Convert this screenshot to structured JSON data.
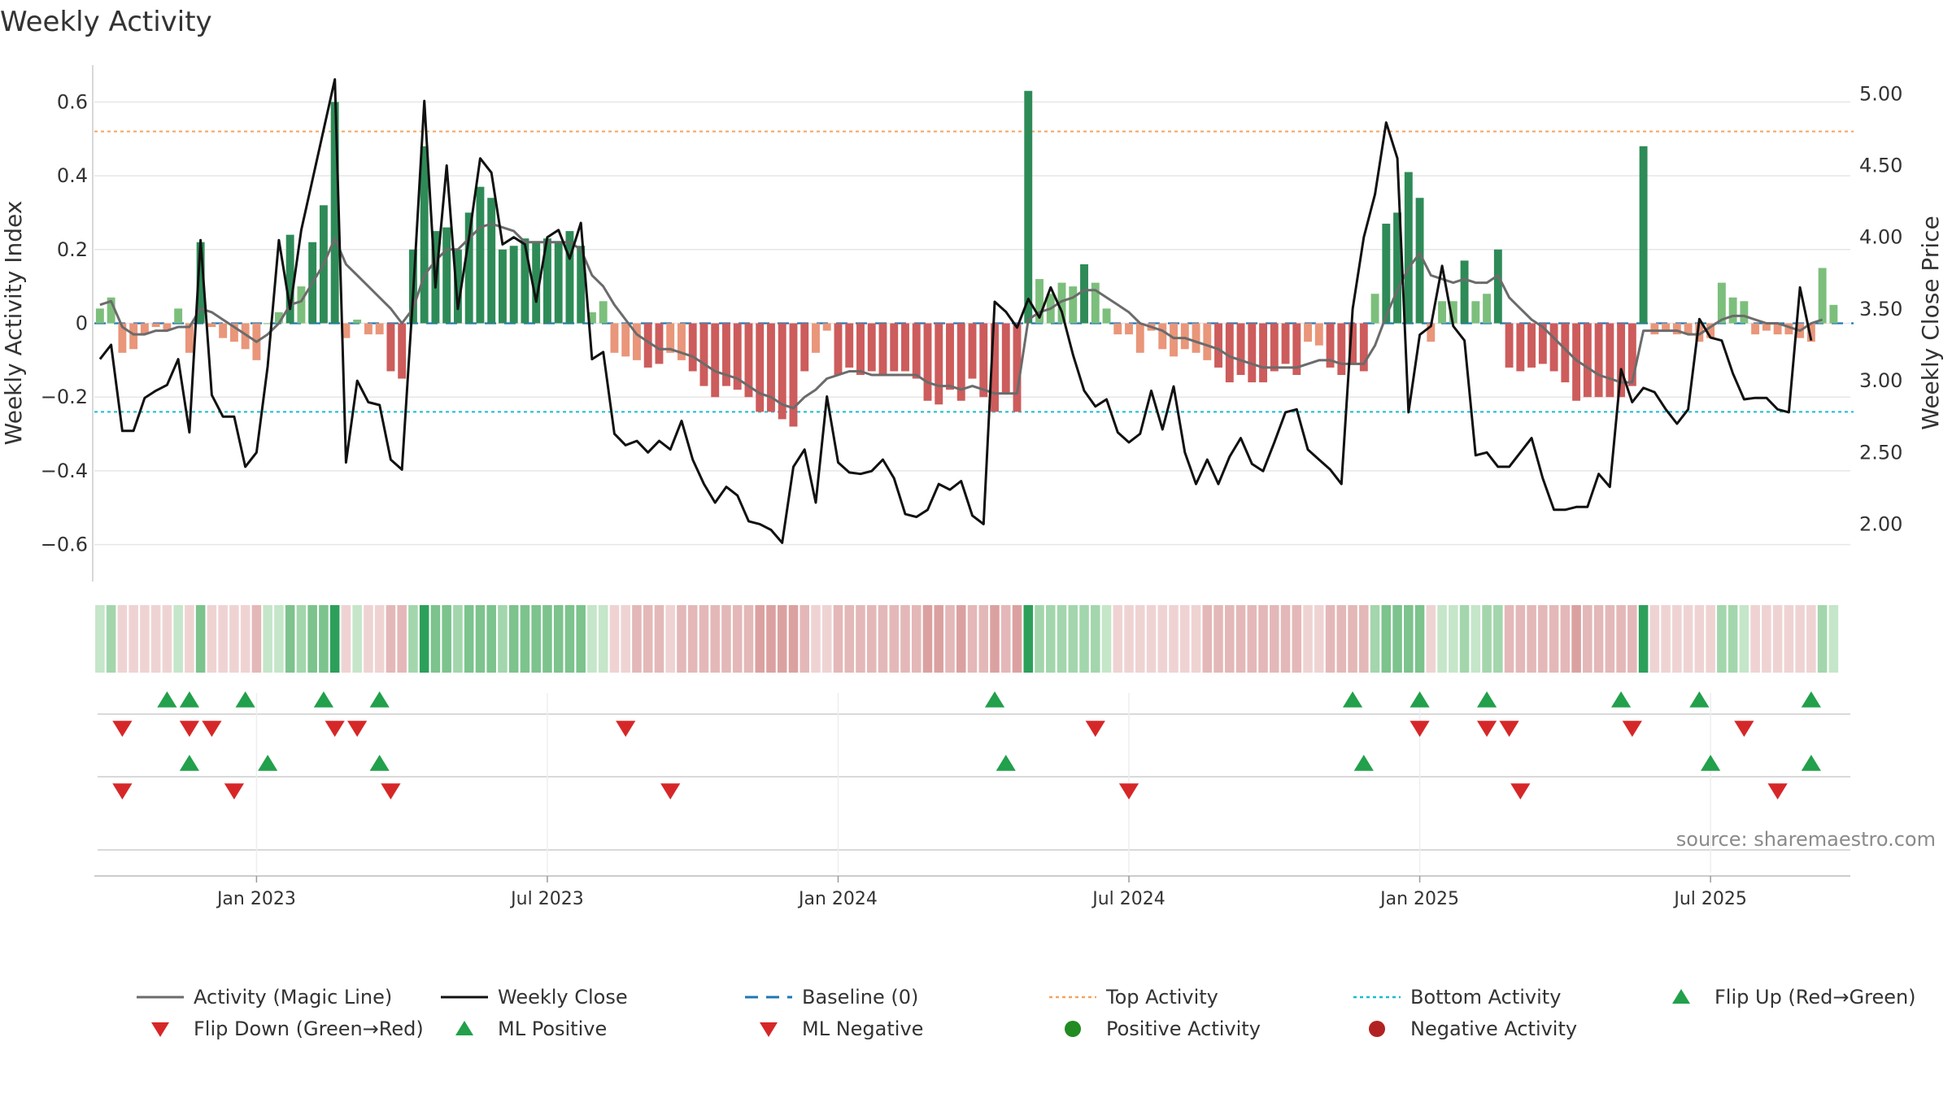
{
  "colors": {
    "pos_strong": "#2e8b57",
    "pos_weak": "#7cbf7c",
    "neg_strong": "#cd5c5c",
    "neg_weak": "#e9967a",
    "magic_line": "#6b6b6b",
    "close_line": "#111111",
    "baseline": "#1f77b4",
    "top": "#f4a460",
    "bottom": "#17becf",
    "up_marker": "#22a04b",
    "down_marker": "#d62728",
    "pos_dot": "#228b22",
    "neg_dot": "#b22222",
    "grid": "#e6e6e6",
    "text": "#333333"
  },
  "chart_data": {
    "type": "bar+line",
    "title": "Weekly Activity",
    "ylabel_left": "Weekly Activity Index",
    "ylabel_right": "Weekly Close Price",
    "ylim_left": [
      -0.7,
      0.7
    ],
    "ylim_right": [
      1.6,
      5.2
    ],
    "yticks_left": [
      {
        "v": 0.6,
        "label": "0.6"
      },
      {
        "v": 0.4,
        "label": "0.4"
      },
      {
        "v": 0.2,
        "label": "0.2"
      },
      {
        "v": 0,
        "label": "0"
      },
      {
        "v": -0.2,
        "label": "−0.2"
      },
      {
        "v": -0.4,
        "label": "−0.4"
      },
      {
        "v": -0.6,
        "label": "−0.6"
      }
    ],
    "yticks_right": [
      {
        "v": 5.0,
        "label": "5.00"
      },
      {
        "v": 4.5,
        "label": "4.50"
      },
      {
        "v": 4.0,
        "label": "4.00"
      },
      {
        "v": 3.5,
        "label": "3.50"
      },
      {
        "v": 3.0,
        "label": "3.00"
      },
      {
        "v": 2.5,
        "label": "2.50"
      },
      {
        "v": 2.0,
        "label": "2.00"
      }
    ],
    "xticks": [
      {
        "week": 14.5,
        "label": "Jan 2023"
      },
      {
        "week": 40.5,
        "label": "Jul 2023"
      },
      {
        "week": 66.5,
        "label": "Jan 2024"
      },
      {
        "week": 92.5,
        "label": "Jul 2024"
      },
      {
        "week": 118.5,
        "label": "Jan 2025"
      },
      {
        "week": 144.5,
        "label": "Jul 2025"
      }
    ],
    "x_range_weeks": [
      0,
      157
    ],
    "top_activity": 0.52,
    "bottom_activity": -0.24,
    "baseline": 0,
    "activity": [
      0.04,
      0.07,
      -0.08,
      -0.07,
      -0.03,
      -0.01,
      -0.02,
      0.04,
      -0.08,
      0.22,
      -0.01,
      -0.04,
      -0.05,
      -0.07,
      -0.1,
      0.0,
      0.03,
      0.24,
      0.1,
      0.22,
      0.32,
      0.6,
      -0.04,
      0.01,
      -0.03,
      -0.03,
      -0.13,
      -0.15,
      0.2,
      0.48,
      0.25,
      0.26,
      0.2,
      0.3,
      0.37,
      0.34,
      0.2,
      0.21,
      0.23,
      0.22,
      0.23,
      0.22,
      0.25,
      0.21,
      0.03,
      0.06,
      -0.08,
      -0.09,
      -0.1,
      -0.12,
      -0.11,
      -0.08,
      -0.1,
      -0.13,
      -0.17,
      -0.2,
      -0.17,
      -0.18,
      -0.2,
      -0.24,
      -0.24,
      -0.26,
      -0.28,
      -0.13,
      -0.08,
      -0.02,
      -0.14,
      -0.12,
      -0.14,
      -0.13,
      -0.14,
      -0.13,
      -0.13,
      -0.15,
      -0.21,
      -0.22,
      -0.18,
      -0.21,
      -0.15,
      -0.2,
      -0.24,
      -0.19,
      -0.24,
      0.63,
      0.12,
      0.08,
      0.11,
      0.1,
      0.16,
      0.11,
      0.04,
      -0.03,
      -0.03,
      -0.08,
      -0.02,
      -0.07,
      -0.09,
      -0.07,
      -0.08,
      -0.1,
      -0.12,
      -0.16,
      -0.14,
      -0.16,
      -0.16,
      -0.13,
      -0.11,
      -0.14,
      -0.05,
      -0.06,
      -0.12,
      -0.14,
      -0.11,
      -0.13,
      0.08,
      0.27,
      0.3,
      0.41,
      0.34,
      -0.05,
      0.06,
      0.06,
      0.17,
      0.06,
      0.08,
      0.2,
      -0.12,
      -0.13,
      -0.12,
      -0.11,
      -0.13,
      -0.16,
      -0.21,
      -0.2,
      -0.2,
      -0.2,
      -0.2,
      -0.17,
      0.48,
      -0.03,
      -0.02,
      -0.03,
      -0.03,
      -0.05,
      -0.04,
      0.11,
      0.07,
      0.06,
      -0.03,
      -0.02,
      -0.03,
      -0.03,
      -0.04,
      -0.05,
      0.15,
      0.05
    ],
    "magic_line": [
      0.05,
      0.06,
      -0.01,
      -0.03,
      -0.03,
      -0.02,
      -0.02,
      -0.01,
      -0.01,
      0.04,
      0.03,
      0.01,
      -0.01,
      -0.03,
      -0.05,
      -0.03,
      0.0,
      0.05,
      0.06,
      0.11,
      0.16,
      0.23,
      0.16,
      0.13,
      0.1,
      0.07,
      0.04,
      0.0,
      0.04,
      0.13,
      0.17,
      0.2,
      0.2,
      0.23,
      0.26,
      0.27,
      0.26,
      0.25,
      0.22,
      0.22,
      0.22,
      0.22,
      0.22,
      0.2,
      0.13,
      0.1,
      0.05,
      0.01,
      -0.03,
      -0.05,
      -0.07,
      -0.07,
      -0.08,
      -0.09,
      -0.11,
      -0.13,
      -0.14,
      -0.15,
      -0.17,
      -0.19,
      -0.2,
      -0.22,
      -0.23,
      -0.2,
      -0.18,
      -0.15,
      -0.14,
      -0.13,
      -0.13,
      -0.14,
      -0.14,
      -0.14,
      -0.14,
      -0.14,
      -0.16,
      -0.17,
      -0.17,
      -0.18,
      -0.17,
      -0.18,
      -0.19,
      -0.19,
      -0.19,
      0.01,
      0.03,
      0.04,
      0.06,
      0.07,
      0.09,
      0.09,
      0.07,
      0.05,
      0.03,
      0.0,
      -0.01,
      -0.02,
      -0.04,
      -0.04,
      -0.05,
      -0.06,
      -0.07,
      -0.09,
      -0.1,
      -0.11,
      -0.12,
      -0.12,
      -0.12,
      -0.12,
      -0.11,
      -0.1,
      -0.1,
      -0.11,
      -0.11,
      -0.11,
      -0.06,
      0.02,
      0.09,
      0.15,
      0.19,
      0.13,
      0.12,
      0.11,
      0.12,
      0.11,
      0.11,
      0.13,
      0.07,
      0.04,
      0.01,
      -0.01,
      -0.04,
      -0.07,
      -0.1,
      -0.12,
      -0.14,
      -0.15,
      -0.16,
      -0.16,
      -0.02,
      -0.02,
      -0.02,
      -0.02,
      -0.03,
      -0.03,
      -0.01,
      0.01,
      0.02,
      0.02,
      0.01,
      0.0,
      0.0,
      -0.01,
      -0.02,
      0.0,
      0.01
    ],
    "weekly_close": [
      3.15,
      3.25,
      2.65,
      2.65,
      2.88,
      2.93,
      2.97,
      3.15,
      2.64,
      3.98,
      2.9,
      2.75,
      2.75,
      2.4,
      2.5,
      3.1,
      3.98,
      3.5,
      4.05,
      4.4,
      4.75,
      5.1,
      2.43,
      3.0,
      2.85,
      2.83,
      2.45,
      2.38,
      3.6,
      4.95,
      3.65,
      4.5,
      3.5,
      4.0,
      4.55,
      4.45,
      3.95,
      4.0,
      3.95,
      3.55,
      4.0,
      4.05,
      3.85,
      4.1,
      3.15,
      3.2,
      2.63,
      2.55,
      2.58,
      2.5,
      2.58,
      2.52,
      2.72,
      2.45,
      2.28,
      2.15,
      2.26,
      2.2,
      2.02,
      2.0,
      1.96,
      1.87,
      2.4,
      2.52,
      2.15,
      2.89,
      2.43,
      2.36,
      2.35,
      2.37,
      2.45,
      2.32,
      2.07,
      2.05,
      2.1,
      2.28,
      2.24,
      2.3,
      2.06,
      2.0,
      3.55,
      3.48,
      3.37,
      3.57,
      3.44,
      3.65,
      3.48,
      3.18,
      2.93,
      2.82,
      2.87,
      2.64,
      2.57,
      2.63,
      2.93,
      2.66,
      2.96,
      2.5,
      2.28,
      2.45,
      2.28,
      2.47,
      2.6,
      2.42,
      2.37,
      2.57,
      2.78,
      2.8,
      2.52,
      2.45,
      2.38,
      2.28,
      3.5,
      4.0,
      4.3,
      4.8,
      4.55,
      2.78,
      3.32,
      3.38,
      3.8,
      3.38,
      3.28,
      2.48,
      2.5,
      2.4,
      2.4,
      2.5,
      2.6,
      2.32,
      2.1,
      2.1,
      2.12,
      2.12,
      2.35,
      2.26,
      3.08,
      2.85,
      2.95,
      2.92,
      2.8,
      2.7,
      2.8,
      3.43,
      3.3,
      3.28,
      3.05,
      2.87,
      2.88,
      2.88,
      2.8,
      2.78,
      3.65,
      3.28
    ],
    "flip_up_weeks": [
      6.5,
      8.5,
      13.5,
      20.5,
      25.5,
      80.5,
      112.5,
      118.5,
      124.5,
      136.5,
      143.5,
      153.5
    ],
    "flip_down_weeks": [
      2.5,
      8.5,
      10.5,
      21.5,
      23.5,
      47.5,
      89.5,
      118.5,
      124.5,
      126.5,
      137.5,
      147.5
    ],
    "ml_positive_weeks": [
      8.5,
      15.5,
      25.5,
      81.5,
      113.5,
      144.5,
      153.5
    ],
    "ml_negative_weeks": [
      2.5,
      12.5,
      26.5,
      51.5,
      92.5,
      127.5,
      150.5
    ]
  },
  "source_text": "source: sharemaestro.com",
  "legend": [
    {
      "label": "Activity (Magic Line)",
      "kind": "line",
      "color": "#6b6b6b"
    },
    {
      "label": "Weekly Close",
      "kind": "line",
      "color": "#111111"
    },
    {
      "label": "Baseline (0)",
      "kind": "dash",
      "color": "#1f77b4"
    },
    {
      "label": "Top Activity",
      "kind": "dot-line",
      "color": "#f4a460"
    },
    {
      "label": "Bottom Activity",
      "kind": "dot-line",
      "color": "#17becf"
    },
    {
      "label": "Flip Up (Red→Green)",
      "kind": "tri-up",
      "color": "#22a04b"
    },
    {
      "label": "Flip Down (Green→Red)",
      "kind": "tri-down",
      "color": "#d62728"
    },
    {
      "label": "ML Positive",
      "kind": "tri-up",
      "color": "#22a04b"
    },
    {
      "label": "ML Negative",
      "kind": "tri-down",
      "color": "#d62728"
    },
    {
      "label": "Positive Activity",
      "kind": "dot",
      "color": "#228b22"
    },
    {
      "label": "Negative Activity",
      "kind": "dot",
      "color": "#b22222"
    }
  ]
}
